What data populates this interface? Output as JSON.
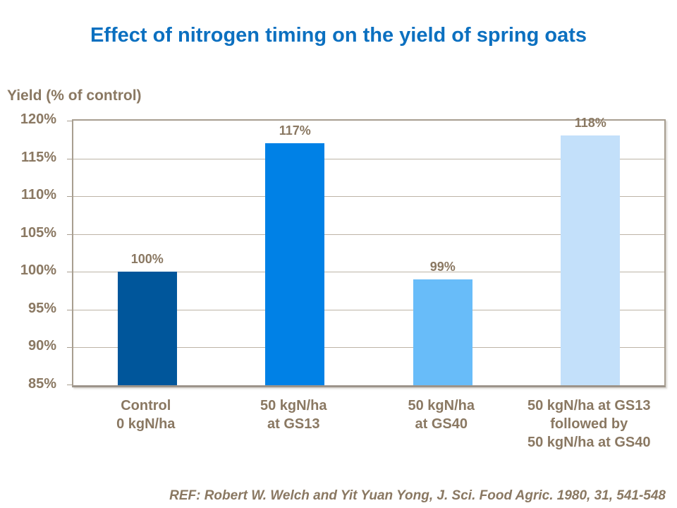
{
  "slide": {
    "title": "Effect of nitrogen timing on the yield of spring oats",
    "footer": "REF: Robert W. Welch and Yit Yuan Yong, J. Sci. Food Agric. 1980, 31, 541-548"
  },
  "colors": {
    "title_blue": "#0c70c0",
    "text_taupe": "#8a7862",
    "gridline": "#bdb4a7",
    "frame": "#a89e90"
  },
  "chart_data": {
    "type": "bar",
    "title": "Effect of nitrogen timing on the yield of spring oats",
    "ylabel": "Yield (% of control)",
    "xlabel": "",
    "categories": [
      [
        "Control",
        "0 kgN/ha"
      ],
      [
        "50 kgN/ha",
        "at GS13"
      ],
      [
        "50 kgN/ha",
        "at GS40"
      ],
      [
        "50 kgN/ha at GS13",
        "followed by",
        "50 kgN/ha at GS40"
      ]
    ],
    "values": [
      100,
      117,
      99,
      118
    ],
    "data_labels": [
      "100%",
      "117%",
      "99%",
      "118%"
    ],
    "bar_colors": [
      "#00569b",
      "#0081e6",
      "#68bcf9",
      "#c3e0fa"
    ],
    "ylim": [
      85,
      120
    ],
    "ytick_step": 5,
    "ytick_labels": [
      "120%",
      "115%",
      "110%",
      "105%",
      "100%",
      "95%",
      "90%",
      "85%"
    ],
    "ytick_suffix": "%",
    "grid": true,
    "legend": false
  }
}
